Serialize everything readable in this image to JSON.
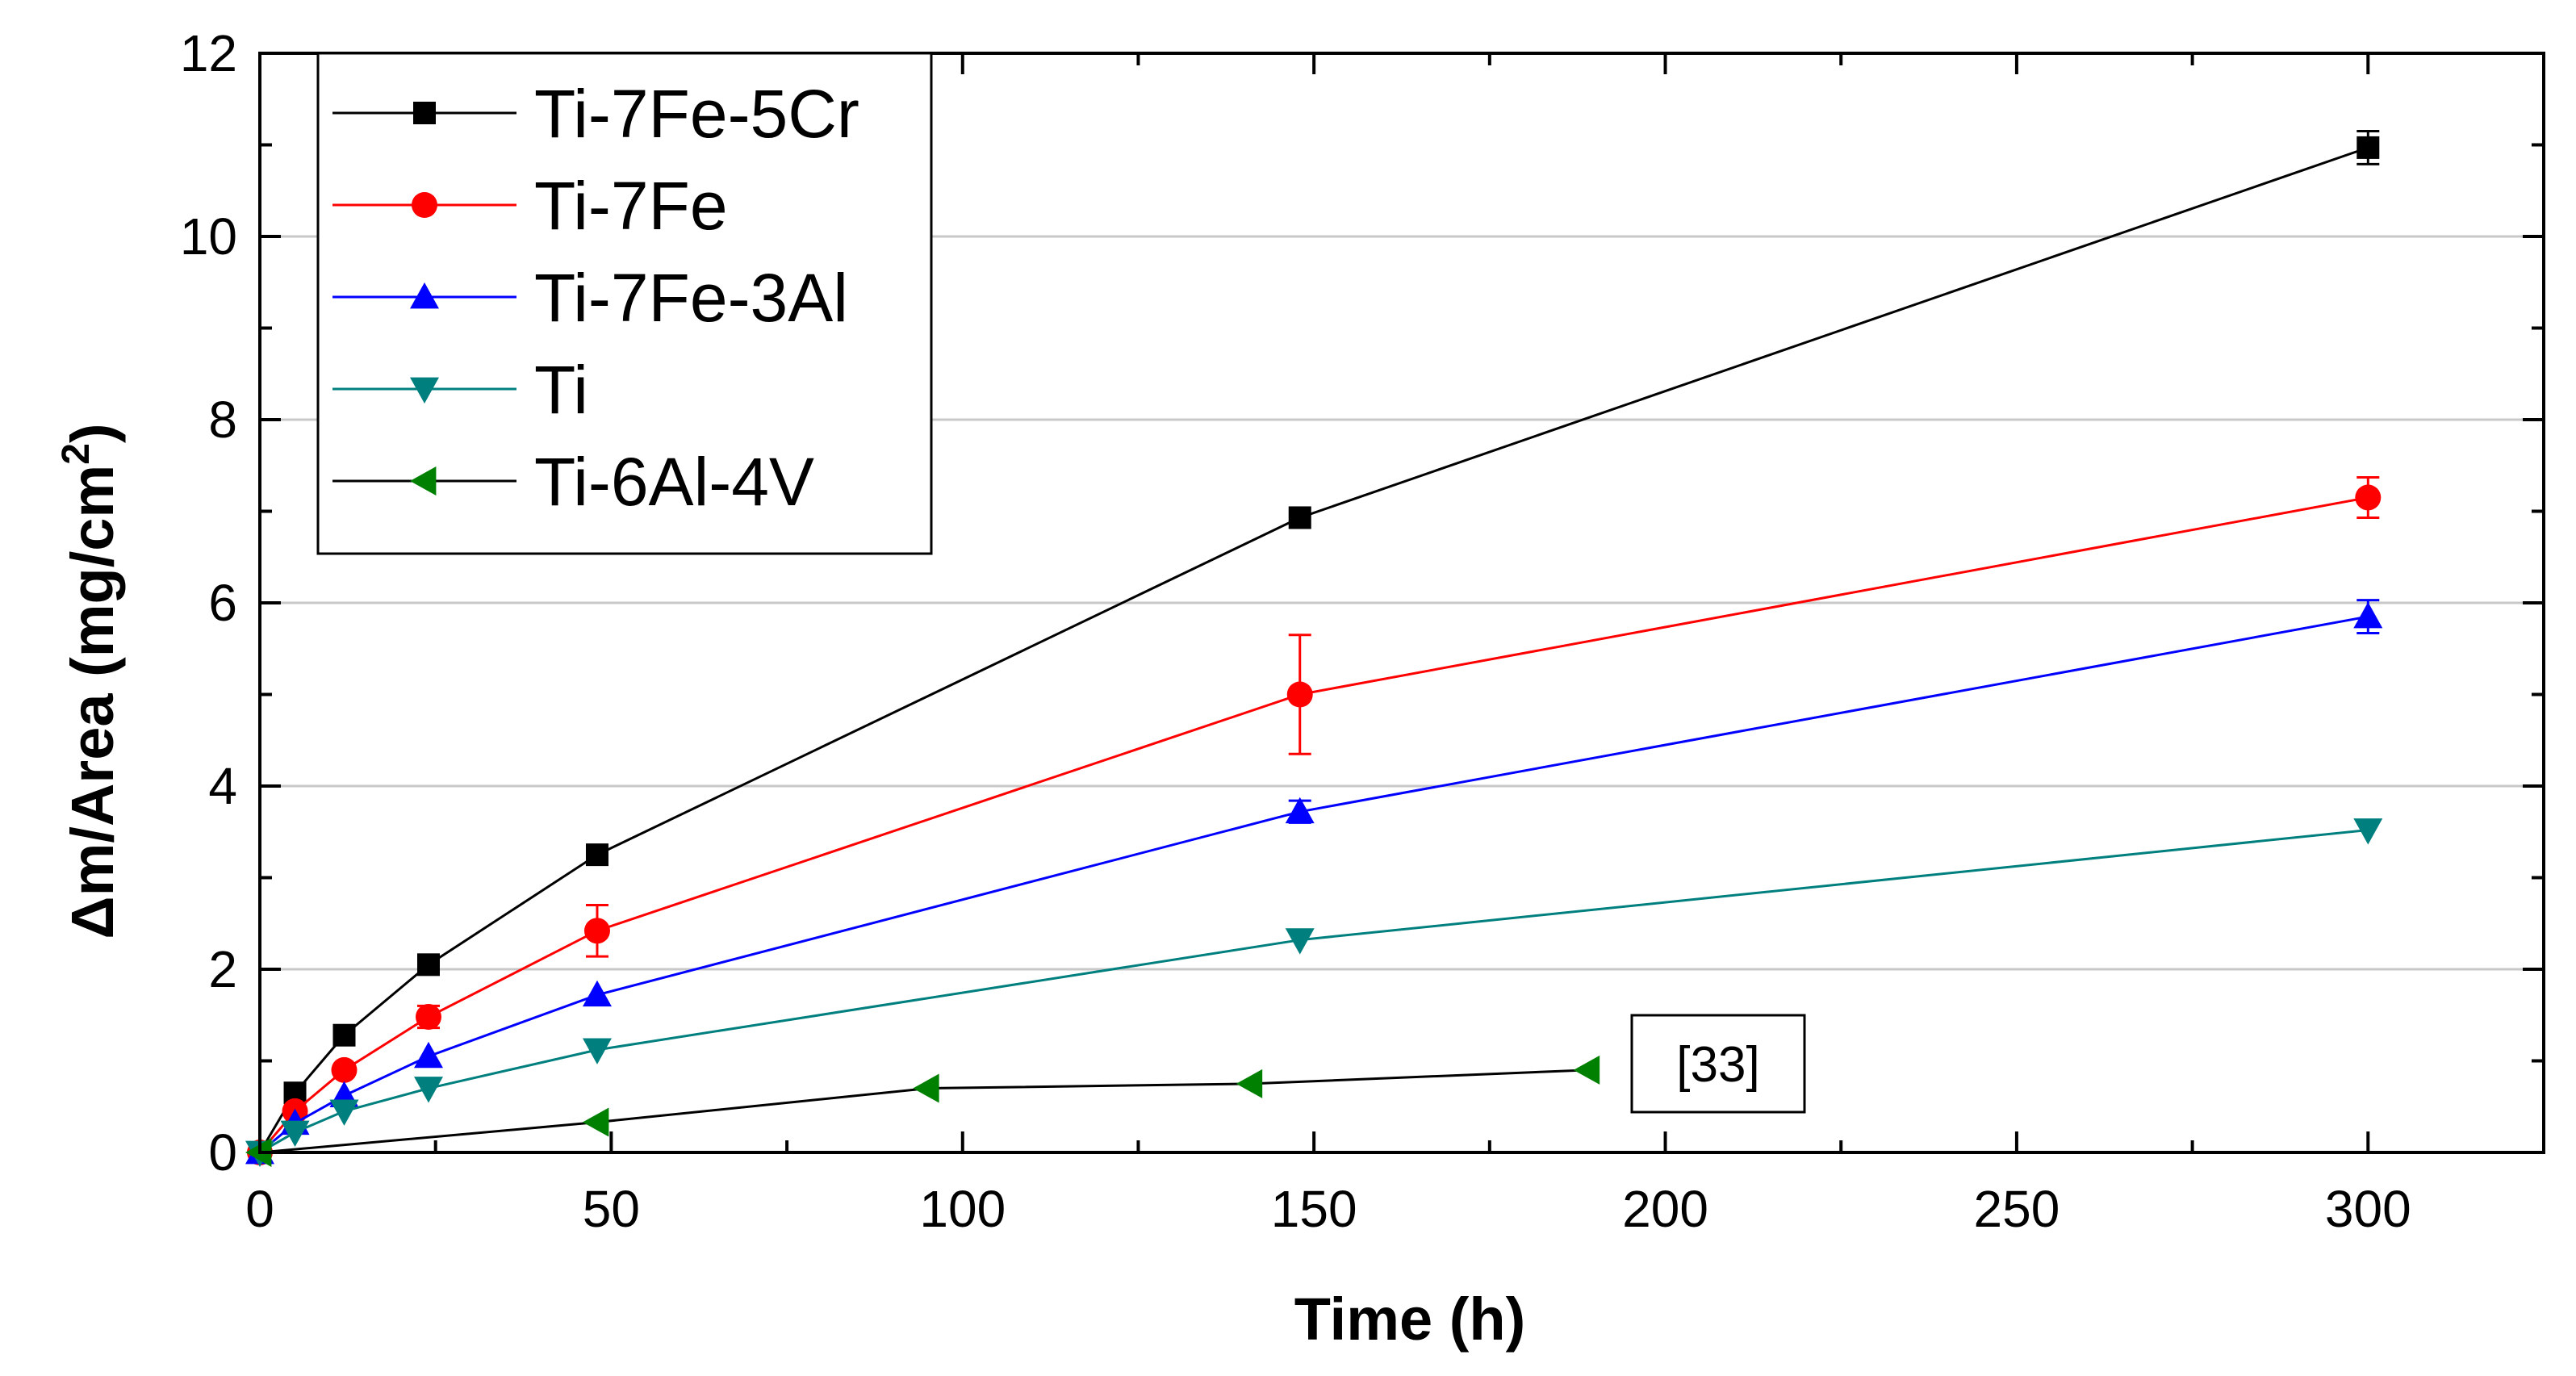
{
  "chart_data": {
    "type": "line",
    "title": "",
    "xlabel": "Time (h)",
    "ylabel_main": "Δm/Area (mg/cm",
    "ylabel_sup": "2",
    "ylabel_close": ")",
    "xlim": [
      0,
      325
    ],
    "ylim": [
      0,
      12
    ],
    "xticks": [
      0,
      50,
      100,
      150,
      200,
      250,
      300
    ],
    "xtick_labels": [
      "0",
      "50",
      "100",
      "150",
      "200",
      "250",
      "300"
    ],
    "yticks": [
      0,
      2,
      4,
      6,
      8,
      10,
      12
    ],
    "ytick_labels": [
      "0",
      "2",
      "4",
      "6",
      "8",
      "10",
      "12"
    ],
    "grid": "horizontal",
    "legend_position": "top-left",
    "annotation": "[33]",
    "series": [
      {
        "name": "Ti-7Fe-5Cr",
        "color": "#000000",
        "marker": "square",
        "x": [
          0,
          5,
          12,
          24,
          48,
          148,
          300
        ],
        "y": [
          0,
          0.65,
          1.28,
          2.05,
          3.25,
          6.93,
          10.97
        ],
        "err": [
          0,
          0,
          0,
          0,
          0,
          0,
          0.18
        ]
      },
      {
        "name": "Ti-7Fe",
        "color": "#ff0000",
        "marker": "circle",
        "x": [
          0,
          5,
          12,
          24,
          48,
          148,
          300
        ],
        "y": [
          0,
          0.45,
          0.9,
          1.48,
          2.42,
          5.0,
          7.15
        ],
        "err": [
          0,
          0,
          0,
          0.12,
          0.28,
          0.65,
          0.22
        ]
      },
      {
        "name": "Ti-7Fe-3Al",
        "color": "#0000ff",
        "marker": "triangle-up",
        "x": [
          0,
          5,
          12,
          24,
          48,
          148,
          300
        ],
        "y": [
          0,
          0.32,
          0.62,
          1.05,
          1.72,
          3.72,
          5.85
        ],
        "err": [
          0,
          0,
          0,
          0,
          0,
          0.12,
          0.18
        ]
      },
      {
        "name": "Ti",
        "color": "#007f7f",
        "marker": "triangle-down",
        "x": [
          0,
          5,
          12,
          24,
          48,
          148,
          300
        ],
        "y": [
          0,
          0.22,
          0.45,
          0.7,
          1.12,
          2.32,
          3.52
        ],
        "err": [
          0,
          0,
          0,
          0,
          0,
          0,
          0
        ]
      },
      {
        "name": "Ti-6Al-4V",
        "color": "#008000",
        "line_color": "#000000",
        "marker": "triangle-left",
        "x": [
          0,
          48,
          95,
          141,
          189
        ],
        "y": [
          0,
          0.33,
          0.7,
          0.75,
          0.9
        ],
        "err": [
          0,
          0,
          0,
          0,
          0
        ]
      }
    ]
  }
}
